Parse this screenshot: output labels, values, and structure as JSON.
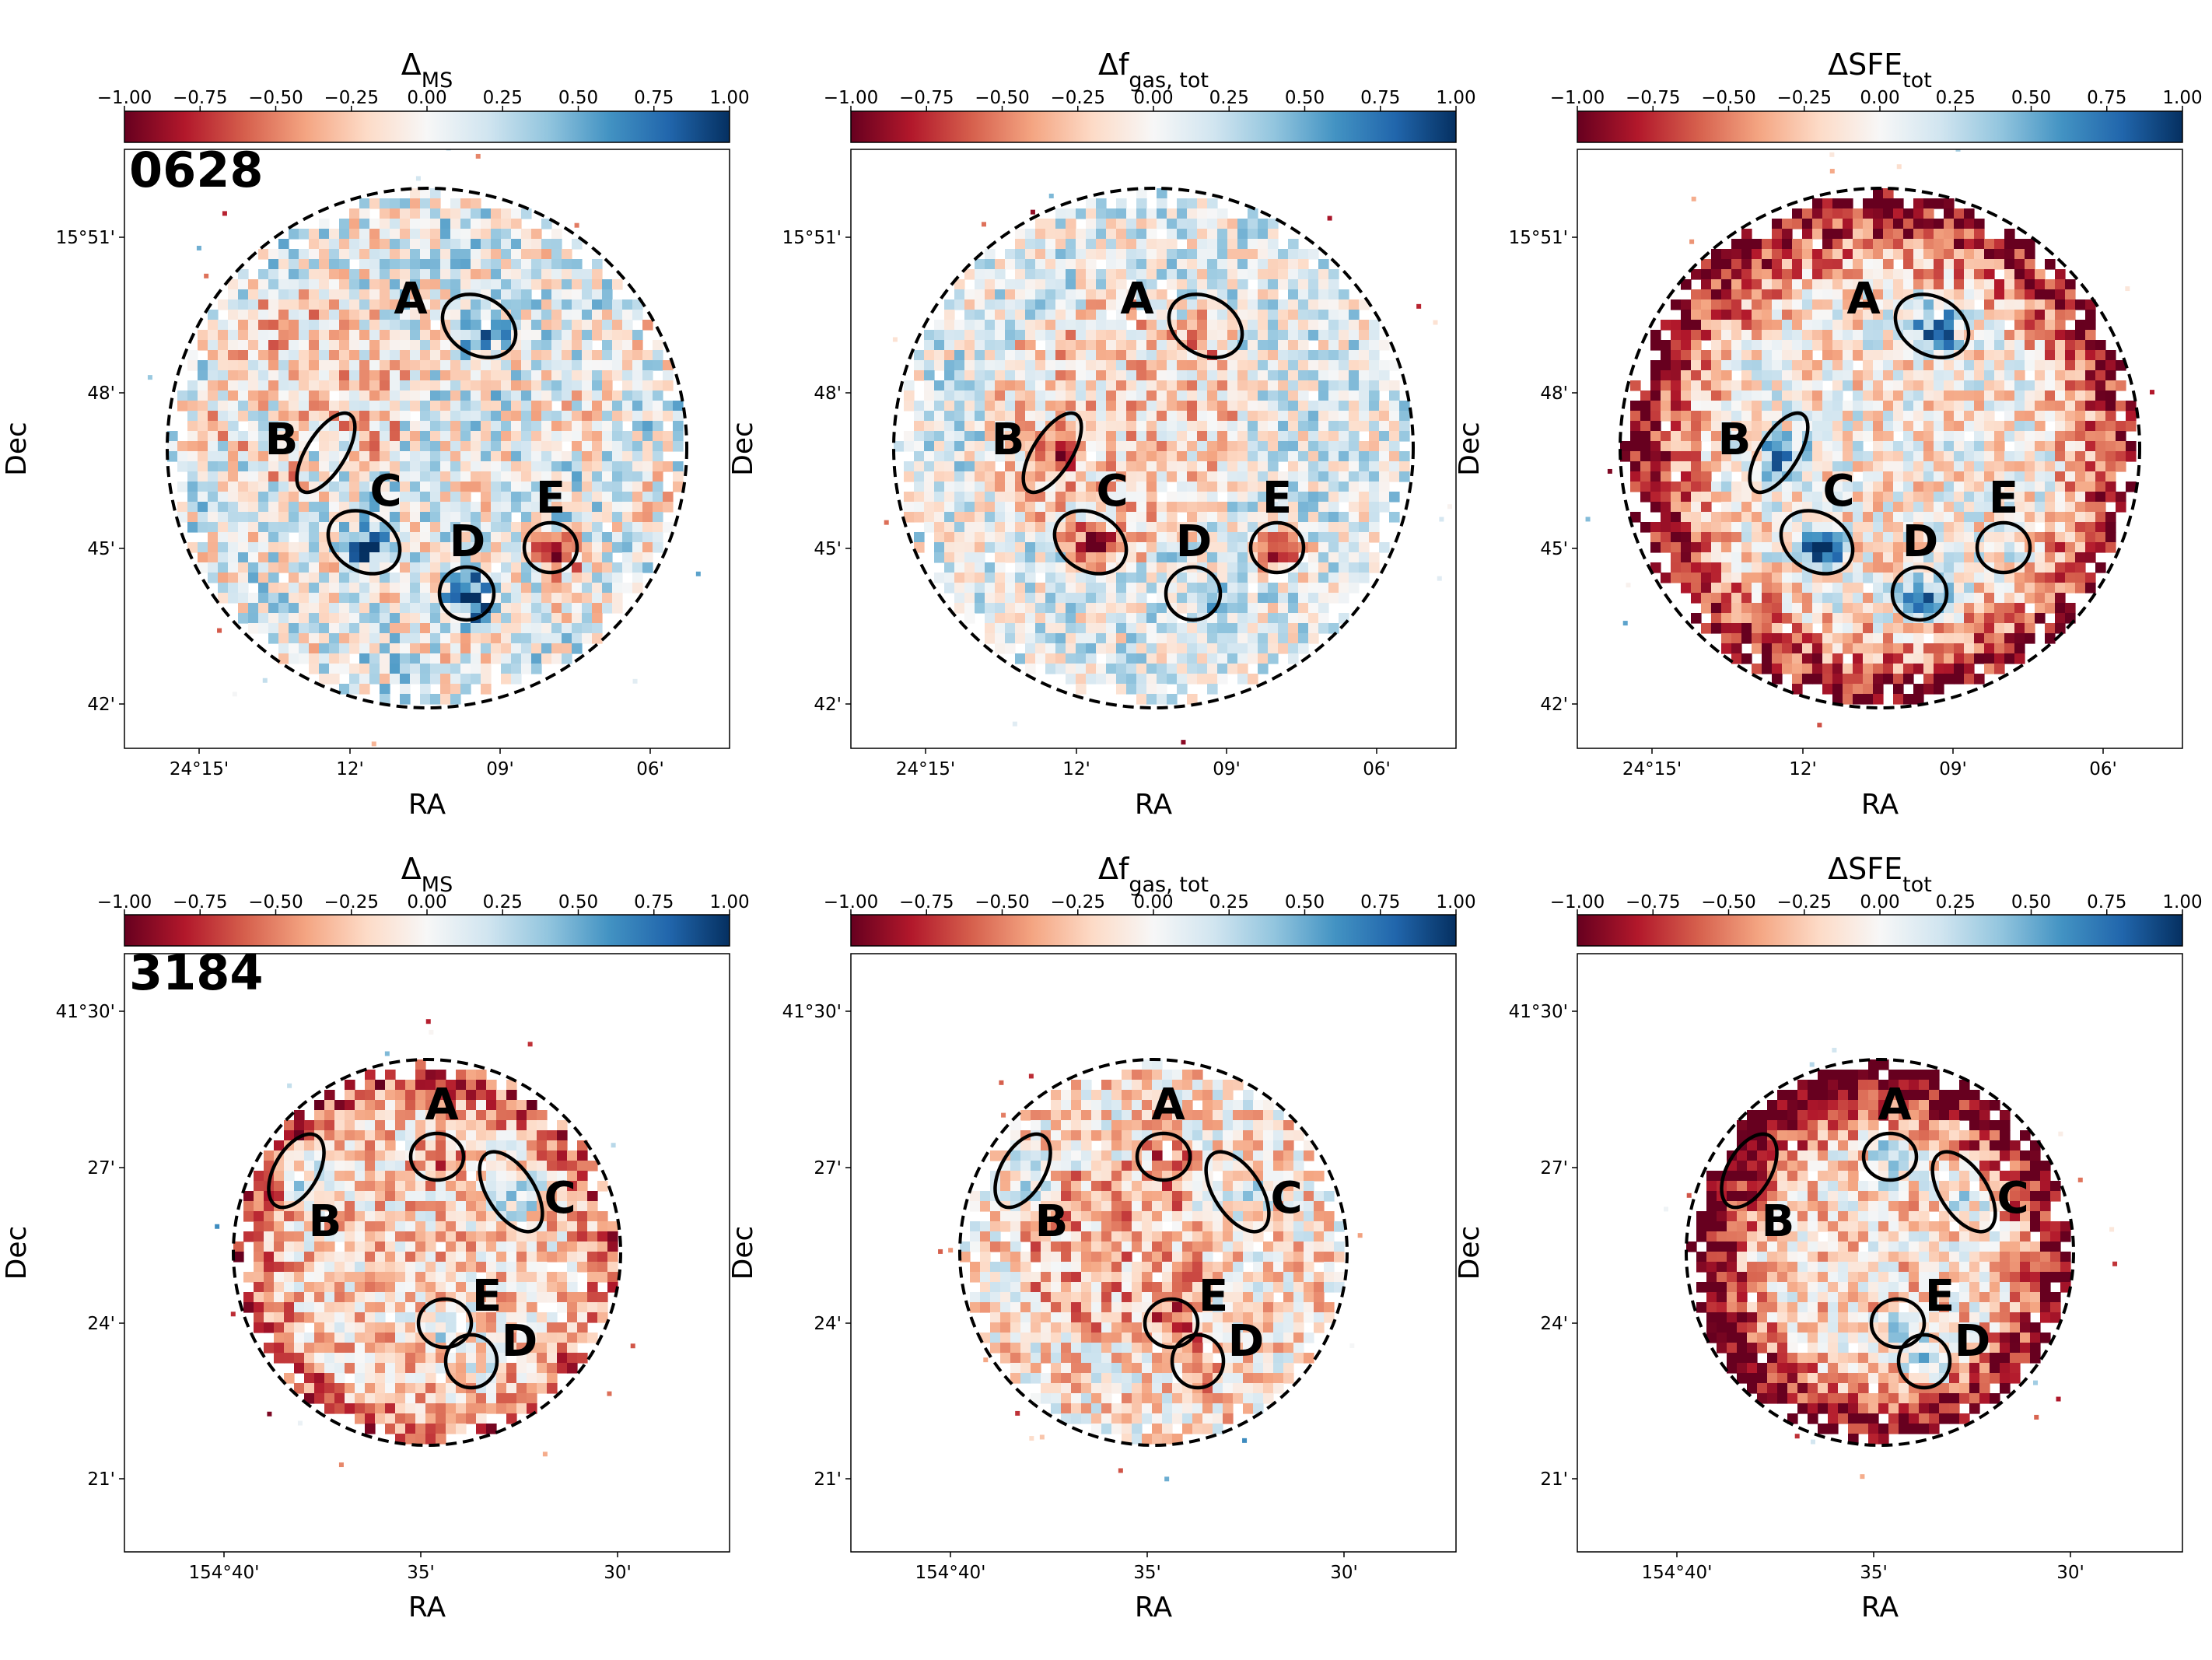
{
  "figure": {
    "colormap": {
      "name": "RdBu",
      "stops": [
        "#67001f",
        "#b2182b",
        "#d6604d",
        "#f4a582",
        "#fddbc7",
        "#f7f7f7",
        "#d1e5f0",
        "#92c5de",
        "#4393c3",
        "#2166ac",
        "#053061"
      ]
    }
  },
  "chart_data": [
    {
      "type": "heatmap",
      "galaxy": "0628",
      "title_base": "Δ",
      "title_sub": "MS",
      "colorbar": {
        "range": [
          -1,
          1
        ],
        "tick_labels": [
          "−1.00",
          "−0.75",
          "−0.50",
          "−0.25",
          "0.00",
          "0.25",
          "0.50",
          "0.75",
          "1.00"
        ]
      },
      "xlabel": "RA",
      "ylabel": "Dec",
      "xtick_labels": [
        "24°15'",
        "12'",
        "09'",
        "06'"
      ],
      "ytick_labels": [
        "15°51'",
        "48'",
        "45'",
        "42'"
      ],
      "regions": [
        "A",
        "B",
        "C",
        "D",
        "E"
      ],
      "field_ellipse": "dashed"
    },
    {
      "type": "heatmap",
      "galaxy": "0628",
      "title_base": "Δf",
      "title_sub": "gas, tot",
      "colorbar": {
        "range": [
          -1,
          1
        ],
        "tick_labels": [
          "−1.00",
          "−0.75",
          "−0.50",
          "−0.25",
          "0.00",
          "0.25",
          "0.50",
          "0.75",
          "1.00"
        ]
      },
      "xlabel": "RA",
      "ylabel": "Dec",
      "xtick_labels": [
        "24°15'",
        "12'",
        "09'",
        "06'"
      ],
      "ytick_labels": [
        "15°51'",
        "48'",
        "45'",
        "42'"
      ],
      "regions": [
        "A",
        "B",
        "C",
        "D",
        "E"
      ],
      "field_ellipse": "dashed"
    },
    {
      "type": "heatmap",
      "galaxy": "0628",
      "title_base": "ΔSFE",
      "title_sub": "tot",
      "colorbar": {
        "range": [
          -1,
          1
        ],
        "tick_labels": [
          "−1.00",
          "−0.75",
          "−0.50",
          "−0.25",
          "0.00",
          "0.25",
          "0.50",
          "0.75",
          "1.00"
        ]
      },
      "xlabel": "RA",
      "ylabel": "Dec",
      "xtick_labels": [
        "24°15'",
        "12'",
        "09'",
        "06'"
      ],
      "ytick_labels": [
        "15°51'",
        "48'",
        "45'",
        "42'"
      ],
      "regions": [
        "A",
        "B",
        "C",
        "D",
        "E"
      ],
      "field_ellipse": "dashed"
    },
    {
      "type": "heatmap",
      "galaxy": "3184",
      "title_base": "Δ",
      "title_sub": "MS",
      "colorbar": {
        "range": [
          -1,
          1
        ],
        "tick_labels": [
          "−1.00",
          "−0.75",
          "−0.50",
          "−0.25",
          "0.00",
          "0.25",
          "0.50",
          "0.75",
          "1.00"
        ]
      },
      "xlabel": "RA",
      "ylabel": "Dec",
      "xtick_labels": [
        "154°40'",
        "35'",
        "30'"
      ],
      "ytick_labels": [
        "41°30'",
        "27'",
        "24'",
        "21'"
      ],
      "regions": [
        "A",
        "B",
        "C",
        "D",
        "E"
      ],
      "field_ellipse": "dashed"
    },
    {
      "type": "heatmap",
      "galaxy": "3184",
      "title_base": "Δf",
      "title_sub": "gas, tot",
      "colorbar": {
        "range": [
          -1,
          1
        ],
        "tick_labels": [
          "−1.00",
          "−0.75",
          "−0.50",
          "−0.25",
          "0.00",
          "0.25",
          "0.50",
          "0.75",
          "1.00"
        ]
      },
      "xlabel": "RA",
      "ylabel": "Dec",
      "xtick_labels": [
        "154°40'",
        "35'",
        "30'"
      ],
      "ytick_labels": [
        "41°30'",
        "27'",
        "24'",
        "21'"
      ],
      "regions": [
        "A",
        "B",
        "C",
        "D",
        "E"
      ],
      "field_ellipse": "dashed"
    },
    {
      "type": "heatmap",
      "galaxy": "3184",
      "title_base": "ΔSFE",
      "title_sub": "tot",
      "colorbar": {
        "range": [
          -1,
          1
        ],
        "tick_labels": [
          "−1.00",
          "−0.75",
          "−0.50",
          "−0.25",
          "0.00",
          "0.25",
          "0.50",
          "0.75",
          "1.00"
        ]
      },
      "xlabel": "RA",
      "ylabel": "Dec",
      "xtick_labels": [
        "154°40'",
        "35'",
        "30'"
      ],
      "ytick_labels": [
        "41°30'",
        "27'",
        "24'",
        "21'"
      ],
      "regions": [
        "A",
        "B",
        "C",
        "D",
        "E"
      ],
      "field_ellipse": "dashed"
    }
  ]
}
